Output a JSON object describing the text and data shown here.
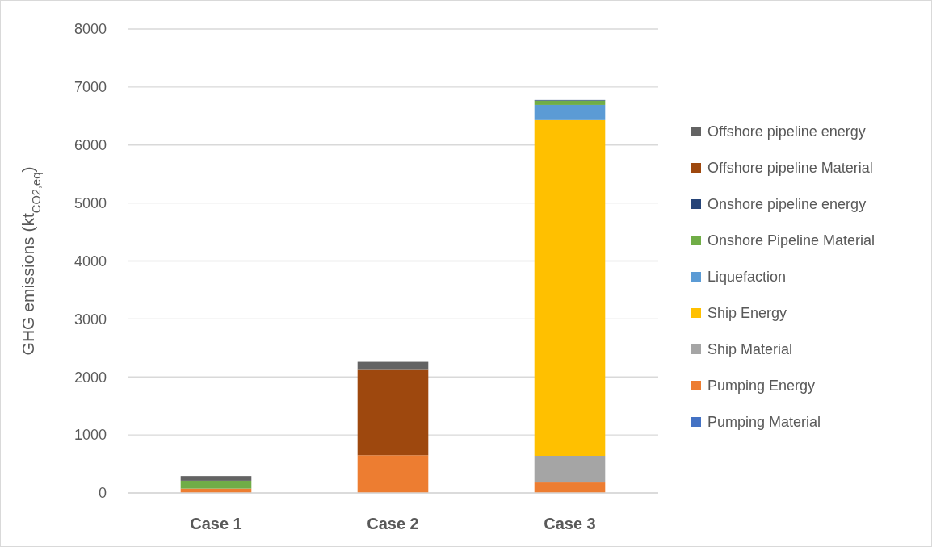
{
  "chart_data": {
    "type": "bar",
    "stacked": true,
    "ylabel": "GHG emissions (kt$_{CO2,eq}$)",
    "categories": [
      "Case 1",
      "Case 2",
      "Case 3"
    ],
    "ylim": [
      0,
      8000
    ],
    "yticks": [
      0,
      1000,
      2000,
      3000,
      4000,
      5000,
      6000,
      7000,
      8000
    ],
    "grid": "y",
    "legend": "right",
    "series": [
      {
        "name": "Pumping Material",
        "color": "#4472c4",
        "values": [
          0,
          0,
          0
        ]
      },
      {
        "name": "Pumping Energy",
        "color": "#ed7d31",
        "values": [
          75,
          650,
          180
        ]
      },
      {
        "name": "Ship Material",
        "color": "#a5a5a5",
        "values": [
          0,
          0,
          460
        ]
      },
      {
        "name": "Ship Energy",
        "color": "#ffc000",
        "values": [
          0,
          0,
          5790
        ]
      },
      {
        "name": "Liquefaction",
        "color": "#5b9bd5",
        "values": [
          0,
          0,
          263
        ]
      },
      {
        "name": "Onshore Pipeline Material",
        "color": "#70ad47",
        "values": [
          135,
          0,
          74
        ]
      },
      {
        "name": "Onshore pipeline energy",
        "color": "#264478",
        "values": [
          null,
          0,
          10
        ]
      },
      {
        "name": "Offshore pipeline Material",
        "color": "#9e480e",
        "values": [
          0,
          1485,
          0
        ]
      },
      {
        "name": "Offshore pipeline energy",
        "color": "#636363",
        "values": [
          80,
          125,
          0
        ]
      }
    ]
  }
}
